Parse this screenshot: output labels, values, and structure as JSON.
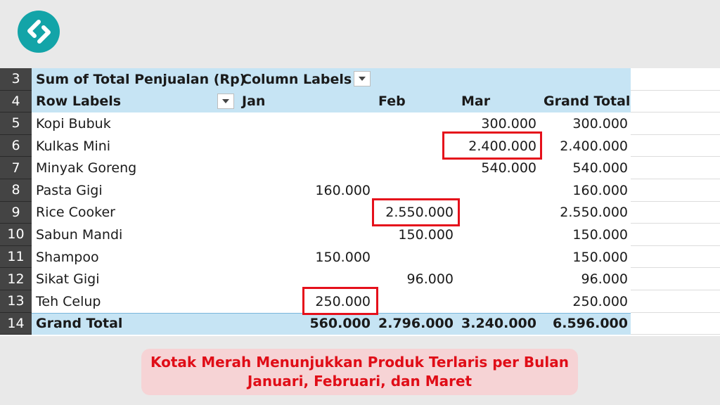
{
  "logo": {
    "icon": "brand-logo-icon",
    "color": "#13a4a8"
  },
  "pivot": {
    "value_field": "Sum of Total Penjualan (Rp)",
    "column_labels": "Column Labels",
    "row_labels": "Row Labels",
    "columns": [
      "Jan",
      "Feb",
      "Mar",
      "Grand Total"
    ],
    "header_row_numbers": [
      "3",
      "4"
    ],
    "rows": [
      {
        "num": "5",
        "label": "Kopi Bubuk",
        "jan": "",
        "feb": "",
        "mar": "300.000",
        "total": "300.000"
      },
      {
        "num": "6",
        "label": "Kulkas Mini",
        "jan": "",
        "feb": "",
        "mar": "2.400.000",
        "total": "2.400.000"
      },
      {
        "num": "7",
        "label": "Minyak Goreng",
        "jan": "",
        "feb": "",
        "mar": "540.000",
        "total": "540.000"
      },
      {
        "num": "8",
        "label": "Pasta Gigi",
        "jan": "160.000",
        "feb": "",
        "mar": "",
        "total": "160.000"
      },
      {
        "num": "9",
        "label": "Rice Cooker",
        "jan": "",
        "feb": "2.550.000",
        "mar": "",
        "total": "2.550.000"
      },
      {
        "num": "10",
        "label": "Sabun Mandi",
        "jan": "",
        "feb": "150.000",
        "mar": "",
        "total": "150.000"
      },
      {
        "num": "11",
        "label": "Shampoo",
        "jan": "150.000",
        "feb": "",
        "mar": "",
        "total": "150.000"
      },
      {
        "num": "12",
        "label": "Sikat Gigi",
        "jan": "",
        "feb": "96.000",
        "mar": "",
        "total": "96.000"
      },
      {
        "num": "13",
        "label": "Teh Celup",
        "jan": "250.000",
        "feb": "",
        "mar": "",
        "total": "250.000"
      }
    ],
    "grand_total": {
      "num": "14",
      "label": "Grand Total",
      "jan": "560.000",
      "feb": "2.796.000",
      "mar": "3.240.000",
      "total": "6.596.000"
    },
    "highlighted_cells": [
      "Kulkas Mini / Mar",
      "Rice Cooker / Feb",
      "Teh Celup / Jan"
    ],
    "highlight_color": "#e5101b",
    "header_fill": "#c6e4f4"
  },
  "caption": {
    "line1": "Kotak Merah Menunjukkan Produk Terlaris per Bulan",
    "line2": "Januari, Februari, dan Maret",
    "color": "#e00d17",
    "background": "#f6d3d5"
  }
}
